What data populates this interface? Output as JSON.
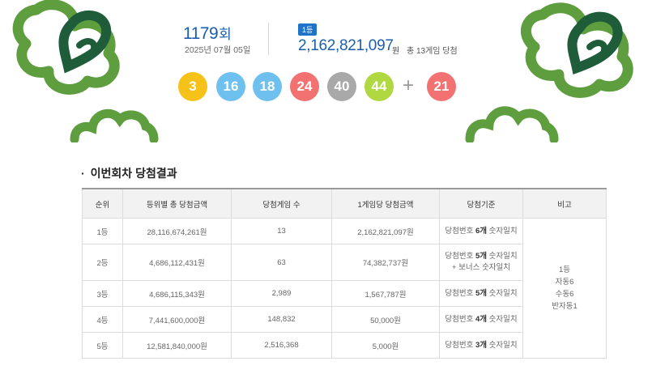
{
  "draw": {
    "round_number": "1179",
    "round_suffix": "회",
    "date": "2025년 07월 05일",
    "first_badge": "1등",
    "first_prize_amount": "2,162,821,097",
    "first_prize_unit": "원",
    "first_prize_games": "총 13게임 당첨",
    "numbers": [
      {
        "value": "3",
        "color": "#f6c21a"
      },
      {
        "value": "16",
        "color": "#6ec1ee"
      },
      {
        "value": "18",
        "color": "#6ec1ee"
      },
      {
        "value": "24",
        "color": "#f27171"
      },
      {
        "value": "40",
        "color": "#a9a9a9"
      },
      {
        "value": "44",
        "color": "#b0d840"
      }
    ],
    "plus_sign": "+",
    "bonus": {
      "value": "21",
      "color": "#f27171"
    }
  },
  "results": {
    "section_title": "이번회차 당첨결과",
    "bullet": "·",
    "headers": [
      "순위",
      "등위별 총 당첨금액",
      "당첨게임 수",
      "1게임당 당첨금액",
      "당첨기준",
      "비고"
    ],
    "rows": [
      {
        "rank": "1등",
        "total": "28,116,674,261원",
        "games": "13",
        "per_game": "2,162,821,097원",
        "criteria_prefix": "당첨번호 ",
        "criteria_bold": "6개",
        "criteria_suffix": " 숫자일치",
        "criteria_line2": ""
      },
      {
        "rank": "2등",
        "total": "4,686,112,431원",
        "games": "63",
        "per_game": "74,382,737원",
        "criteria_prefix": "당첨번호 ",
        "criteria_bold": "5개",
        "criteria_suffix": " 숫자일치",
        "criteria_line2": "+ 보너스 숫자일치"
      },
      {
        "rank": "3등",
        "total": "4,686,115,343원",
        "games": "2,989",
        "per_game": "1,567,787원",
        "criteria_prefix": "당첨번호 ",
        "criteria_bold": "5개",
        "criteria_suffix": " 숫자일치",
        "criteria_line2": ""
      },
      {
        "rank": "4등",
        "total": "7,441,600,000원",
        "games": "148,832",
        "per_game": "50,000원",
        "criteria_prefix": "당첨번호 ",
        "criteria_bold": "4개",
        "criteria_suffix": " 숫자일치",
        "criteria_line2": ""
      },
      {
        "rank": "5등",
        "total": "12,581,840,000원",
        "games": "2,516,368",
        "per_game": "5,000원",
        "criteria_prefix": "당첨번호 ",
        "criteria_bold": "3개",
        "criteria_suffix": " 숫자일치",
        "criteria_line2": ""
      }
    ],
    "remark_lines": [
      "1등",
      "자동6",
      "수동6",
      "반자동1"
    ]
  },
  "decor": {
    "dark_green": "#1e5c3a",
    "light_green": "#5e9e3f"
  }
}
